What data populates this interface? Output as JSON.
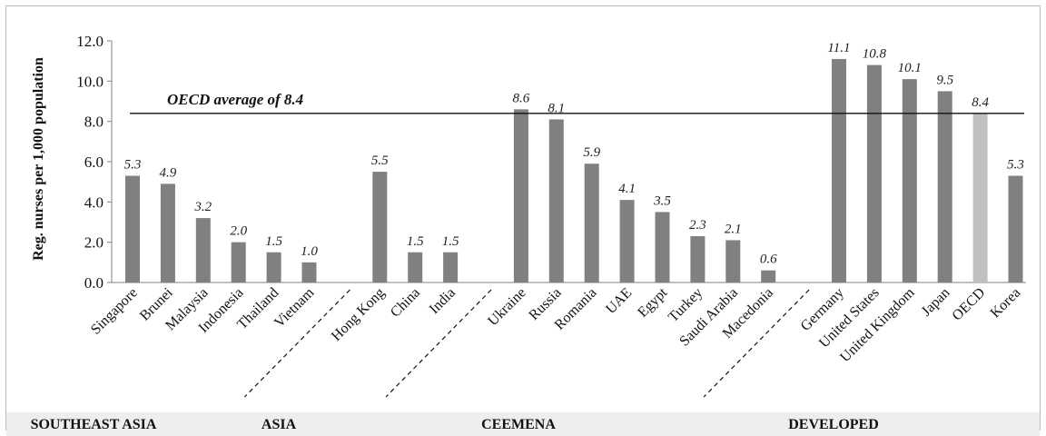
{
  "chart_data": {
    "type": "bar",
    "ylabel": "Reg. nurses per 1,000 population",
    "ylim": [
      0,
      12
    ],
    "yticks": [
      "0.0",
      "2.0",
      "4.0",
      "6.0",
      "8.0",
      "10.0",
      "12.0"
    ],
    "grid": false,
    "reference_line": {
      "label": "OECD average of 8.4",
      "value": 8.4
    },
    "bars": [
      {
        "category": "Singapore",
        "value": 5.3,
        "label": "5.3",
        "color": "#808080"
      },
      {
        "category": "Brunei",
        "value": 4.9,
        "label": "4.9",
        "color": "#808080"
      },
      {
        "category": "Malaysia",
        "value": 3.2,
        "label": "3.2",
        "color": "#808080"
      },
      {
        "category": "Indonesia",
        "value": 2.0,
        "label": "2.0",
        "color": "#808080"
      },
      {
        "category": "Thailand",
        "value": 1.5,
        "label": "1.5",
        "color": "#808080"
      },
      {
        "category": "Vietnam",
        "value": 1.0,
        "label": "1.0",
        "color": "#808080"
      },
      {
        "category": "Hong Kong",
        "value": 5.5,
        "label": "5.5",
        "color": "#808080"
      },
      {
        "category": "China",
        "value": 1.5,
        "label": "1.5",
        "color": "#808080"
      },
      {
        "category": "India",
        "value": 1.5,
        "label": "1.5",
        "color": "#808080"
      },
      {
        "category": "Ukraine",
        "value": 8.6,
        "label": "8.6",
        "color": "#808080"
      },
      {
        "category": "Russia",
        "value": 8.1,
        "label": "8.1",
        "color": "#808080"
      },
      {
        "category": "Romania",
        "value": 5.9,
        "label": "5.9",
        "color": "#808080"
      },
      {
        "category": "UAE",
        "value": 4.1,
        "label": "4.1",
        "color": "#808080"
      },
      {
        "category": "Egypt",
        "value": 3.5,
        "label": "3.5",
        "color": "#808080"
      },
      {
        "category": "Turkey",
        "value": 2.3,
        "label": "2.3",
        "color": "#808080"
      },
      {
        "category": "Saudi Arabia",
        "value": 2.1,
        "label": "2.1",
        "color": "#808080"
      },
      {
        "category": "Macedonia",
        "value": 0.6,
        "label": "0.6",
        "color": "#808080"
      },
      {
        "category": "Germany",
        "value": 11.1,
        "label": "11.1",
        "color": "#808080"
      },
      {
        "category": "United States",
        "value": 10.8,
        "label": "10.8",
        "color": "#808080"
      },
      {
        "category": "United Kingdom",
        "value": 10.1,
        "label": "10.1",
        "color": "#808080"
      },
      {
        "category": "Japan",
        "value": 9.5,
        "label": "9.5",
        "color": "#808080"
      },
      {
        "category": "OECD",
        "value": 8.4,
        "label": "8.4",
        "color": "#c0c0c0"
      },
      {
        "category": "Korea",
        "value": 5.3,
        "label": "5.3",
        "color": "#808080"
      }
    ],
    "groups": [
      {
        "name": "SOUTHEAST ASIA",
        "categories": [
          "Singapore",
          "Brunei",
          "Malaysia",
          "Indonesia",
          "Thailand",
          "Vietnam"
        ]
      },
      {
        "name": "ASIA",
        "categories": [
          "Hong Kong",
          "China",
          "India"
        ]
      },
      {
        "name": "CEEMENA",
        "categories": [
          "Ukraine",
          "Russia",
          "Romania",
          "UAE",
          "Egypt",
          "Turkey",
          "Saudi Arabia",
          "Macedonia"
        ]
      },
      {
        "name": "DEVELOPED",
        "categories": [
          "Germany",
          "United States",
          "United Kingdom",
          "Japan",
          "OECD",
          "Korea"
        ]
      }
    ]
  }
}
